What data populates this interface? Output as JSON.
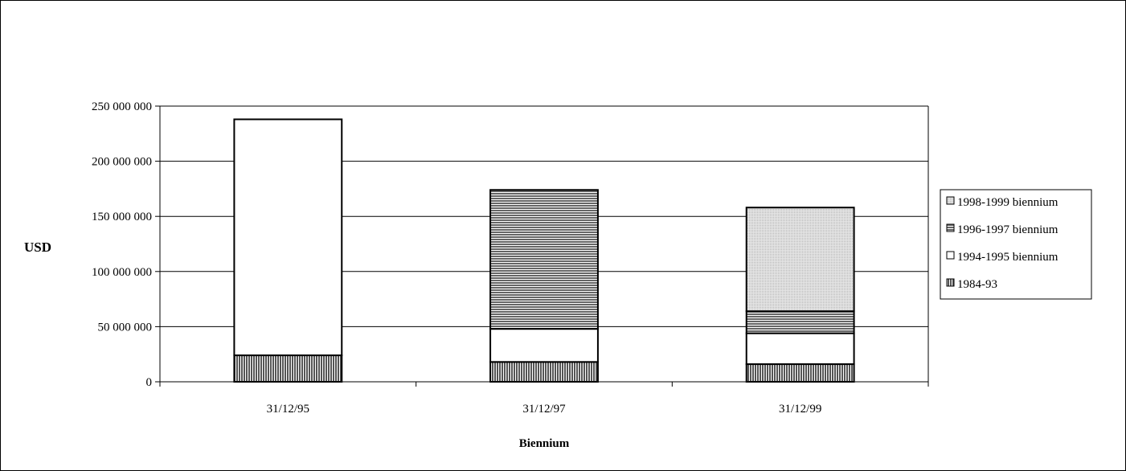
{
  "chart_data": {
    "type": "bar",
    "stacked": true,
    "title": "",
    "xlabel": "Biennium",
    "ylabel": "USD",
    "ylim": [
      0,
      250000000
    ],
    "yticks": [
      0,
      50000000,
      100000000,
      150000000,
      200000000,
      250000000
    ],
    "ytick_labels": [
      "0",
      "50 000 000",
      "100 000 000",
      "150 000 000",
      "200 000 000",
      "250 000 000"
    ],
    "grid": true,
    "legend_position": "right",
    "categories": [
      "31/12/95",
      "31/12/97",
      "31/12/99"
    ],
    "series": [
      {
        "name": "1984-93",
        "values": [
          24000000,
          18000000,
          16000000
        ],
        "pattern": "vertical-lines",
        "color": "#555555"
      },
      {
        "name": "1994-1995 biennium",
        "values": [
          214000000,
          30000000,
          28000000
        ],
        "pattern": "solid",
        "color": "#ffffff"
      },
      {
        "name": "1996-1997 biennium",
        "values": [
          0,
          126000000,
          20000000
        ],
        "pattern": "horizontal-lines",
        "color": "#555555"
      },
      {
        "name": "1998-1999 biennium",
        "values": [
          0,
          0,
          94000000
        ],
        "pattern": "dots",
        "color": "#d9d9d9"
      }
    ],
    "legend_order": [
      "1998-1999 biennium",
      "1996-1997 biennium",
      "1994-1995 biennium",
      "1984-93"
    ]
  }
}
